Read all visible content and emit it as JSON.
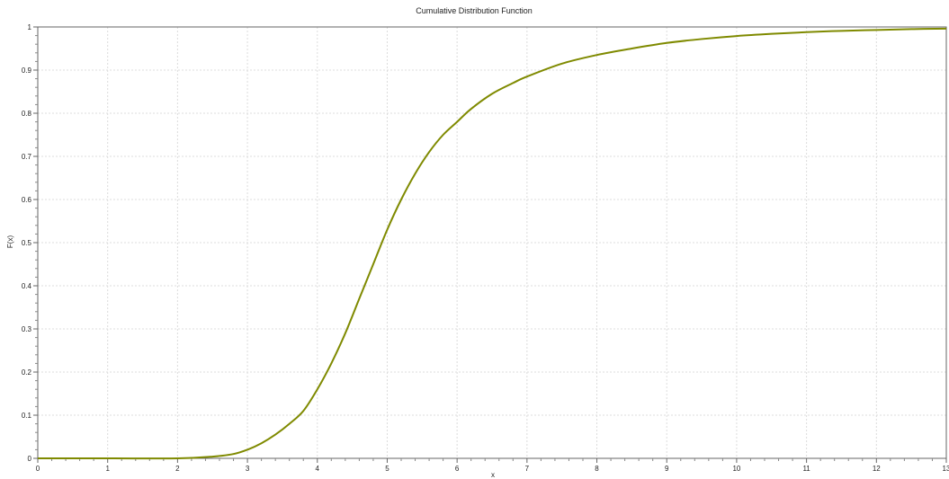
{
  "chart_data": {
    "type": "line",
    "title": "Cumulative Distribution Function",
    "xlabel": "x",
    "ylabel": "F(x)",
    "xlim": [
      0,
      13
    ],
    "ylim": [
      0,
      1
    ],
    "x_ticks": [
      "0",
      "1",
      "2",
      "3",
      "4",
      "5",
      "6",
      "7",
      "8",
      "9",
      "10",
      "11",
      "12",
      "13"
    ],
    "y_ticks": [
      "0",
      "0.1",
      "0.2",
      "0.3",
      "0.4",
      "0.5",
      "0.6",
      "0.7",
      "0.8",
      "0.9",
      "1"
    ],
    "grid": true,
    "legend": "none",
    "series": [
      {
        "color": "#7f8a00",
        "x": [
          0,
          1,
          2,
          2.5,
          2.8,
          3,
          3.2,
          3.4,
          3.6,
          3.8,
          4,
          4.2,
          4.4,
          4.6,
          4.8,
          5,
          5.2,
          5.4,
          5.6,
          5.8,
          6,
          6.2,
          6.5,
          6.8,
          7,
          7.5,
          8,
          8.5,
          9,
          9.5,
          10,
          10.5,
          11,
          11.5,
          12,
          12.5,
          13
        ],
        "y": [
          0,
          0,
          0,
          0.004,
          0.01,
          0.02,
          0.035,
          0.055,
          0.08,
          0.11,
          0.16,
          0.22,
          0.29,
          0.37,
          0.45,
          0.53,
          0.6,
          0.66,
          0.71,
          0.75,
          0.78,
          0.81,
          0.845,
          0.87,
          0.885,
          0.915,
          0.935,
          0.95,
          0.963,
          0.972,
          0.979,
          0.984,
          0.988,
          0.991,
          0.993,
          0.995,
          0.996
        ]
      }
    ]
  }
}
